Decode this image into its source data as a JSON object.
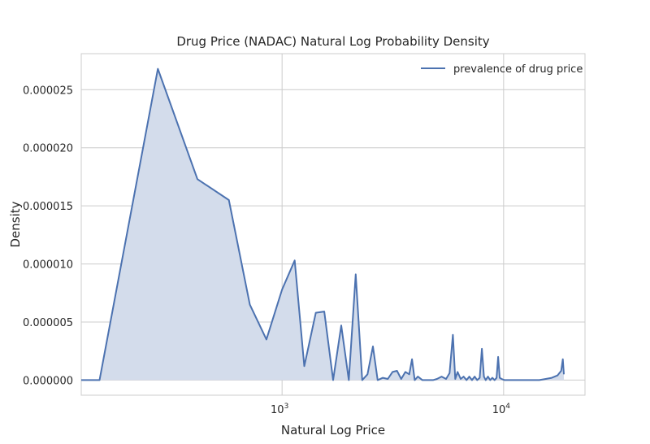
{
  "chart_data": {
    "type": "area",
    "title": "Drug Price (NADAC) Natural Log Probability Density",
    "xlabel": "Natural Log Price",
    "ylabel": "Density",
    "x_scale": "log",
    "xlim": [
      124,
      23300
    ],
    "ylim": [
      -1.3e-06,
      2.81e-05
    ],
    "y_ticks": [
      0,
      5e-06,
      1e-05,
      1.5e-05,
      2e-05,
      2.5e-05
    ],
    "y_tick_labels": [
      "0.000000",
      "0.000005",
      "0.000010",
      "0.000015",
      "0.000020",
      "0.000025"
    ],
    "x_ticks": [
      1000,
      10000
    ],
    "x_tick_labels": [
      {
        "base": "10",
        "exp": "3"
      },
      {
        "base": "10",
        "exp": "4"
      }
    ],
    "grid": true,
    "legend_position": "top-right",
    "series": [
      {
        "name": "prevalence of drug price",
        "color": "#4c72b0",
        "fill": "#d3dceb",
        "x": [
          124,
          150,
          275,
          415,
          575,
          715,
          850,
          1000,
          1140,
          1260,
          1420,
          1550,
          1700,
          1850,
          2000,
          2150,
          2300,
          2430,
          2570,
          2700,
          2850,
          3000,
          3150,
          3300,
          3450,
          3600,
          3750,
          3860,
          3970,
          4100,
          4300,
          4550,
          4800,
          5000,
          5250,
          5500,
          5700,
          5900,
          6050,
          6200,
          6400,
          6600,
          6800,
          7000,
          7200,
          7400,
          7600,
          7800,
          7980,
          8150,
          8300,
          8500,
          8700,
          8900,
          9100,
          9300,
          9450,
          9600,
          9800,
          10100,
          10600,
          11500,
          12500,
          13500,
          14500,
          15500,
          16500,
          17500,
          18200,
          18500,
          18700
        ],
        "y": [
          0,
          0,
          2.68e-05,
          1.73e-05,
          1.55e-05,
          6.5e-06,
          3.5e-06,
          7.8e-06,
          1.03e-05,
          1.2e-06,
          5.8e-06,
          5.9e-06,
          0.0,
          4.7e-06,
          0.0,
          9.1e-06,
          0.0,
          5e-07,
          2.9e-06,
          0.0,
          2e-07,
          1e-07,
          7e-07,
          8e-07,
          1e-07,
          7e-07,
          5e-07,
          1.8e-06,
          0.0,
          3e-07,
          0.0,
          0.0,
          0.0,
          1e-07,
          3e-07,
          1e-07,
          6e-07,
          3.9e-06,
          1e-07,
          7e-07,
          1e-07,
          3e-07,
          0.0,
          3e-07,
          0.0,
          3e-07,
          0.0,
          2e-07,
          2.7e-06,
          3e-07,
          0.0,
          3e-07,
          0.0,
          2e-07,
          0.0,
          2e-07,
          2e-06,
          2e-07,
          1e-07,
          0.0,
          0.0,
          0.0,
          0.0,
          0.0,
          0.0,
          1e-07,
          2e-07,
          4e-07,
          8e-07,
          1.8e-06,
          5e-07
        ]
      }
    ]
  }
}
